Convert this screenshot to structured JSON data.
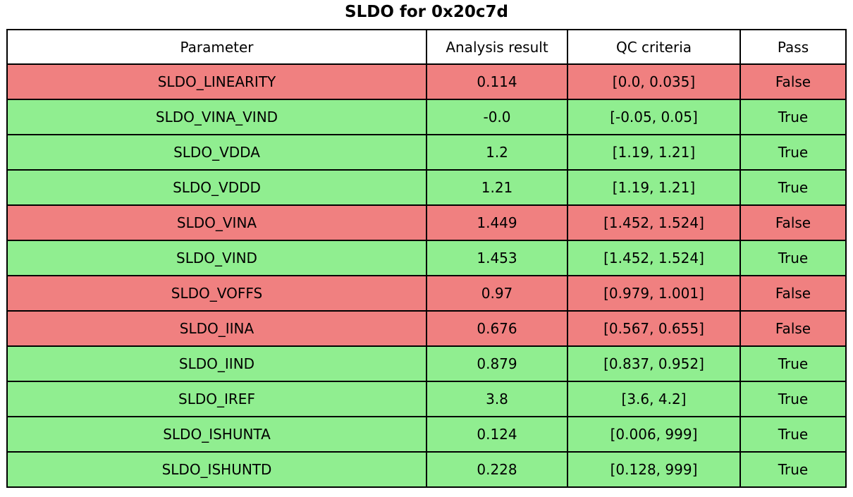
{
  "title": "SLDO for 0x20c7d",
  "colors": {
    "pass_row": "#90ee90",
    "fail_row": "#f08080",
    "header_bg": "#ffffff",
    "border": "#000000",
    "text": "#000000"
  },
  "chart_data": {
    "type": "table",
    "title": "SLDO for 0x20c7d",
    "columns": [
      "Parameter",
      "Analysis result",
      "QC criteria",
      "Pass"
    ],
    "rows": [
      {
        "parameter": "SLDO_LINEARITY",
        "analysis_result": "0.114",
        "qc_criteria": "[0.0, 0.035]",
        "pass": "False"
      },
      {
        "parameter": "SLDO_VINA_VIND",
        "analysis_result": "-0.0",
        "qc_criteria": "[-0.05, 0.05]",
        "pass": "True"
      },
      {
        "parameter": "SLDO_VDDA",
        "analysis_result": "1.2",
        "qc_criteria": "[1.19, 1.21]",
        "pass": "True"
      },
      {
        "parameter": "SLDO_VDDD",
        "analysis_result": "1.21",
        "qc_criteria": "[1.19, 1.21]",
        "pass": "True"
      },
      {
        "parameter": "SLDO_VINA",
        "analysis_result": "1.449",
        "qc_criteria": "[1.452, 1.524]",
        "pass": "False"
      },
      {
        "parameter": "SLDO_VIND",
        "analysis_result": "1.453",
        "qc_criteria": "[1.452, 1.524]",
        "pass": "True"
      },
      {
        "parameter": "SLDO_VOFFS",
        "analysis_result": "0.97",
        "qc_criteria": "[0.979, 1.001]",
        "pass": "False"
      },
      {
        "parameter": "SLDO_IINA",
        "analysis_result": "0.676",
        "qc_criteria": "[0.567, 0.655]",
        "pass": "False"
      },
      {
        "parameter": "SLDO_IIND",
        "analysis_result": "0.879",
        "qc_criteria": "[0.837, 0.952]",
        "pass": "True"
      },
      {
        "parameter": "SLDO_IREF",
        "analysis_result": "3.8",
        "qc_criteria": "[3.6, 4.2]",
        "pass": "True"
      },
      {
        "parameter": "SLDO_ISHUNTA",
        "analysis_result": "0.124",
        "qc_criteria": "[0.006, 999]",
        "pass": "True"
      },
      {
        "parameter": "SLDO_ISHUNTD",
        "analysis_result": "0.228",
        "qc_criteria": "[0.128, 999]",
        "pass": "True"
      }
    ]
  }
}
